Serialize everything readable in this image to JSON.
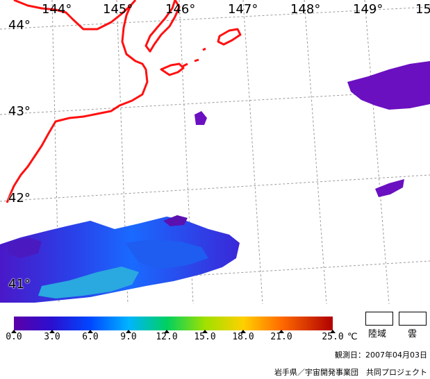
{
  "map": {
    "lon_labels": [
      "144°",
      "145°",
      "146°",
      "147°",
      "148°",
      "149°",
      "15"
    ],
    "lat_labels": [
      "44°",
      "43°",
      "42°",
      "41°"
    ],
    "colors": {
      "coast": "#ff1010",
      "grid": "#9a9a9a",
      "land_legend": "#ffffff",
      "cloud_legend": "#ffffff"
    }
  },
  "legend": {
    "ticks": [
      "0.0",
      "3.0",
      "6.0",
      "9.0",
      "12.0",
      "15.0",
      "18.0",
      "21.0",
      "25.0"
    ],
    "unit": "℃",
    "land_label": "陸域",
    "cloud_label": "雲",
    "colors": [
      "#5b00a8",
      "#2a10d0",
      "#0048ff",
      "#00b4ff",
      "#00d060",
      "#a0e000",
      "#ffd000",
      "#ff6a00",
      "#b00000"
    ]
  },
  "observation_date": "観測日：2007年04月03日",
  "credit": "岩手県／宇宙開発事業団　共同プロジェクト"
}
